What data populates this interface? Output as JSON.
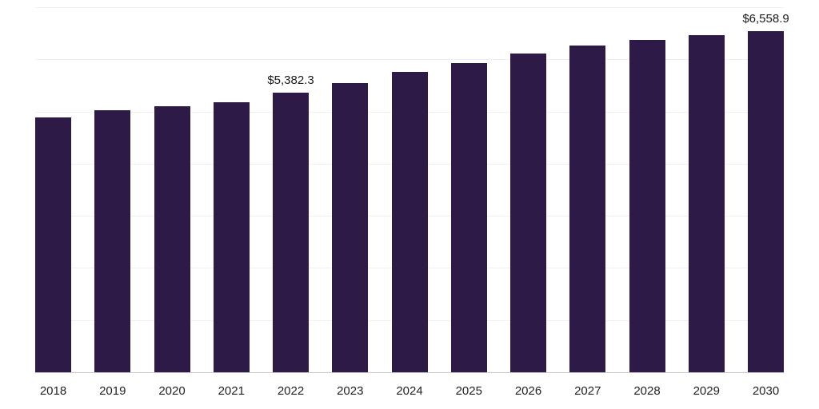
{
  "chart_data": {
    "type": "bar",
    "title": "",
    "xlabel": "",
    "ylabel": "",
    "categories": [
      "2018",
      "2019",
      "2020",
      "2021",
      "2022",
      "2023",
      "2024",
      "2025",
      "2026",
      "2027",
      "2028",
      "2029",
      "2030"
    ],
    "values": [
      4900,
      5040,
      5110,
      5200,
      5382.3,
      5560,
      5770,
      5950,
      6120,
      6280,
      6380,
      6480,
      6558.9
    ],
    "annotations": [
      {
        "category": "2022",
        "text": "$5,382.3"
      },
      {
        "category": "2030",
        "text": "$6,558.9"
      }
    ],
    "ylim": [
      0,
      7000
    ],
    "grid": true,
    "grid_step": 1000,
    "legend_position": "none",
    "colors": {
      "bar": "#2e1a47",
      "gridline": "#f0eff2",
      "axis_line": "#c9c9c9",
      "tick_label": "#222222",
      "value_label": "#1a1a1a",
      "background": "#ffffff"
    }
  }
}
